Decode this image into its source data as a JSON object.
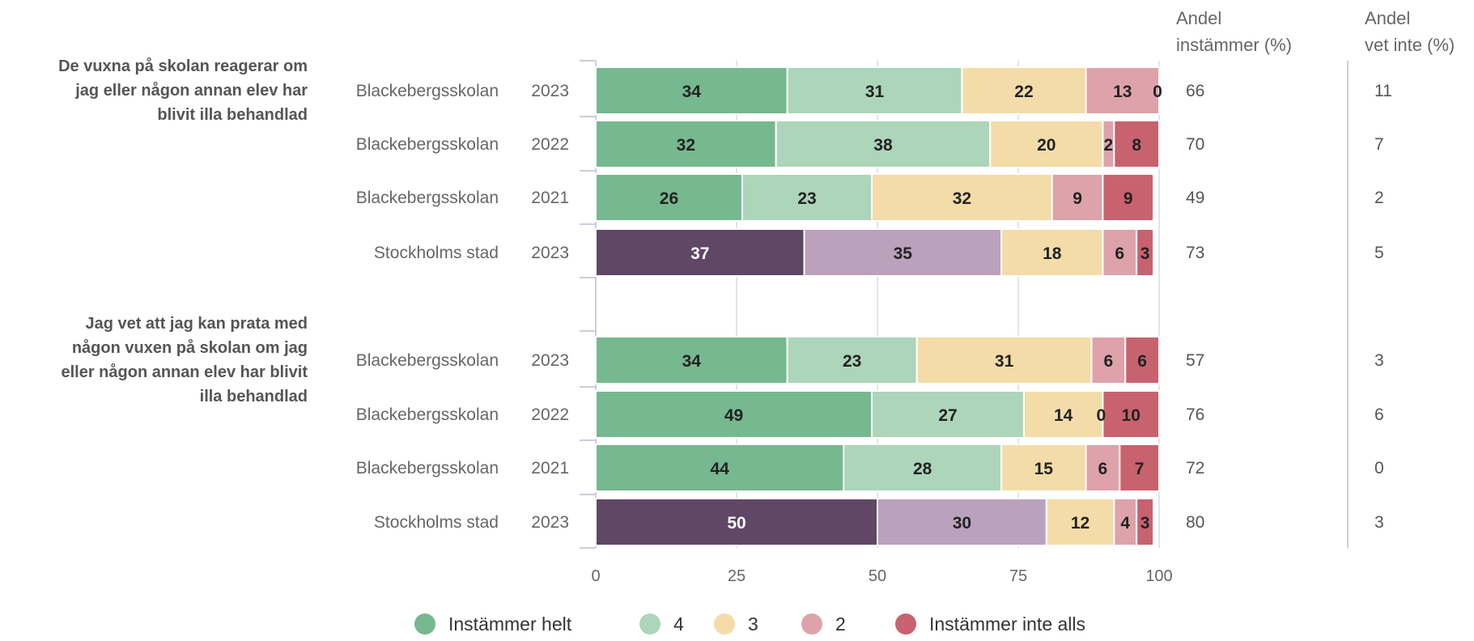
{
  "chart_data": {
    "type": "bar",
    "orientation": "horizontal",
    "stacked": true,
    "xlim": [
      0,
      100
    ],
    "x_ticks": [
      "0",
      "25",
      "50",
      "75",
      "100"
    ],
    "grid": true,
    "legend_position": "bottom",
    "headers": {
      "col1": [
        "Andel",
        "instämmer (%)"
      ],
      "col2": [
        "Andel",
        "vet inte (%)"
      ]
    },
    "legend": [
      {
        "label": "Instämmer helt",
        "color": "#76b88f"
      },
      {
        "label": "4",
        "color": "#acd5ba"
      },
      {
        "label": "3",
        "color": "#f3dca8"
      },
      {
        "label": "2",
        "color": "#dea2aa"
      },
      {
        "label": "Instämmer inte alls",
        "color": "#c8626f"
      }
    ],
    "school_colors": [
      "#76b88f",
      "#acd5ba",
      "#f3dca8",
      "#dea2aa",
      "#c8626f"
    ],
    "city_colors": [
      "#604765",
      "#baa1bc",
      "#f3dca8",
      "#dea2aa",
      "#c8626f"
    ],
    "groups": [
      {
        "question": [
          "De vuxna på skolan reagerar om",
          "jag eller någon annan elev har",
          "blivit illa behandlad"
        ],
        "rows": [
          {
            "unit": "Blackebergsskolan",
            "year": "2023",
            "values": [
              34,
              31,
              22,
              13,
              0
            ],
            "instammer": "66",
            "vet_inte": "11",
            "city": false
          },
          {
            "unit": "Blackebergsskolan",
            "year": "2022",
            "values": [
              32,
              38,
              20,
              2,
              8
            ],
            "instammer": "70",
            "vet_inte": "7",
            "city": false
          },
          {
            "unit": "Blackebergsskolan",
            "year": "2021",
            "values": [
              26,
              23,
              32,
              9,
              9
            ],
            "instammer": "49",
            "vet_inte": "2",
            "city": false
          },
          {
            "unit": "Stockholms stad",
            "year": "2023",
            "values": [
              37,
              35,
              18,
              6,
              3
            ],
            "instammer": "73",
            "vet_inte": "5",
            "city": true
          }
        ]
      },
      {
        "question": [
          "Jag vet att jag kan prata med",
          "någon vuxen på skolan om jag",
          "eller någon annan elev har blivit",
          "illa behandlad"
        ],
        "rows": [
          {
            "unit": "Blackebergsskolan",
            "year": "2023",
            "values": [
              34,
              23,
              31,
              6,
              6
            ],
            "instammer": "57",
            "vet_inte": "3",
            "city": false
          },
          {
            "unit": "Blackebergsskolan",
            "year": "2022",
            "values": [
              49,
              27,
              14,
              0,
              10
            ],
            "instammer": "76",
            "vet_inte": "6",
            "city": false
          },
          {
            "unit": "Blackebergsskolan",
            "year": "2021",
            "values": [
              44,
              28,
              15,
              6,
              7
            ],
            "instammer": "72",
            "vet_inte": "0",
            "city": false
          },
          {
            "unit": "Stockholms stad",
            "year": "2023",
            "values": [
              50,
              30,
              12,
              4,
              3
            ],
            "instammer": "80",
            "vet_inte": "3",
            "city": true
          }
        ]
      }
    ]
  }
}
